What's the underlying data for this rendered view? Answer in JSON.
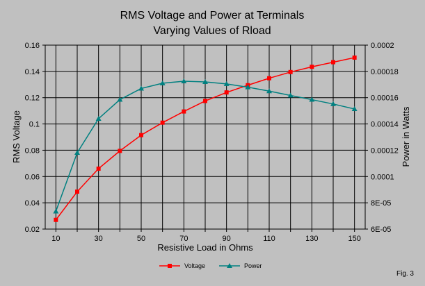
{
  "chart_data": {
    "type": "line",
    "title": [
      "RMS Voltage and Power at Terminals",
      "Varying Values of Rload"
    ],
    "xlabel": "Resistive Load in Ohms",
    "ylabel_left": "RMS Voltage",
    "ylabel_right": "Power in Watts",
    "x": [
      10,
      20,
      30,
      40,
      50,
      60,
      70,
      80,
      90,
      100,
      110,
      120,
      130,
      140,
      150
    ],
    "x_ticks": [
      "10",
      "30",
      "50",
      "70",
      "90",
      "110",
      "130",
      "150"
    ],
    "ylim_left": [
      0.02,
      0.16
    ],
    "ylim_right": [
      6e-05,
      0.0002
    ],
    "y_ticks_left": [
      "0.16",
      "0.14",
      "0.12",
      "0.1",
      "0.08",
      "0.06",
      "0.04",
      "0.02"
    ],
    "y_ticks_right": [
      "0.0002",
      "0.00018",
      "0.00016",
      "0.00014",
      "0.00012",
      "0.0001",
      "8E-05",
      "6E-05"
    ],
    "grid": true,
    "legend_position": "bottom-center",
    "series": [
      {
        "name": "Voltage",
        "axis": "left",
        "color": "#ff0000",
        "marker": "square",
        "values": [
          0.027,
          0.0485,
          0.066,
          0.0795,
          0.0915,
          0.101,
          0.1095,
          0.1175,
          0.124,
          0.1295,
          0.1348,
          0.1395,
          0.1435,
          0.147,
          0.1505
        ]
      },
      {
        "name": "Power",
        "axis": "right",
        "color": "#008080",
        "marker": "triangle",
        "values": [
          7.35e-05,
          0.0001181,
          0.000144,
          0.0001585,
          0.000167,
          0.000171,
          0.0001725,
          0.000172,
          0.0001705,
          0.000168,
          0.000165,
          0.0001617,
          0.0001585,
          0.0001552,
          0.0001514
        ]
      }
    ],
    "annotation": "Fig. 3"
  }
}
